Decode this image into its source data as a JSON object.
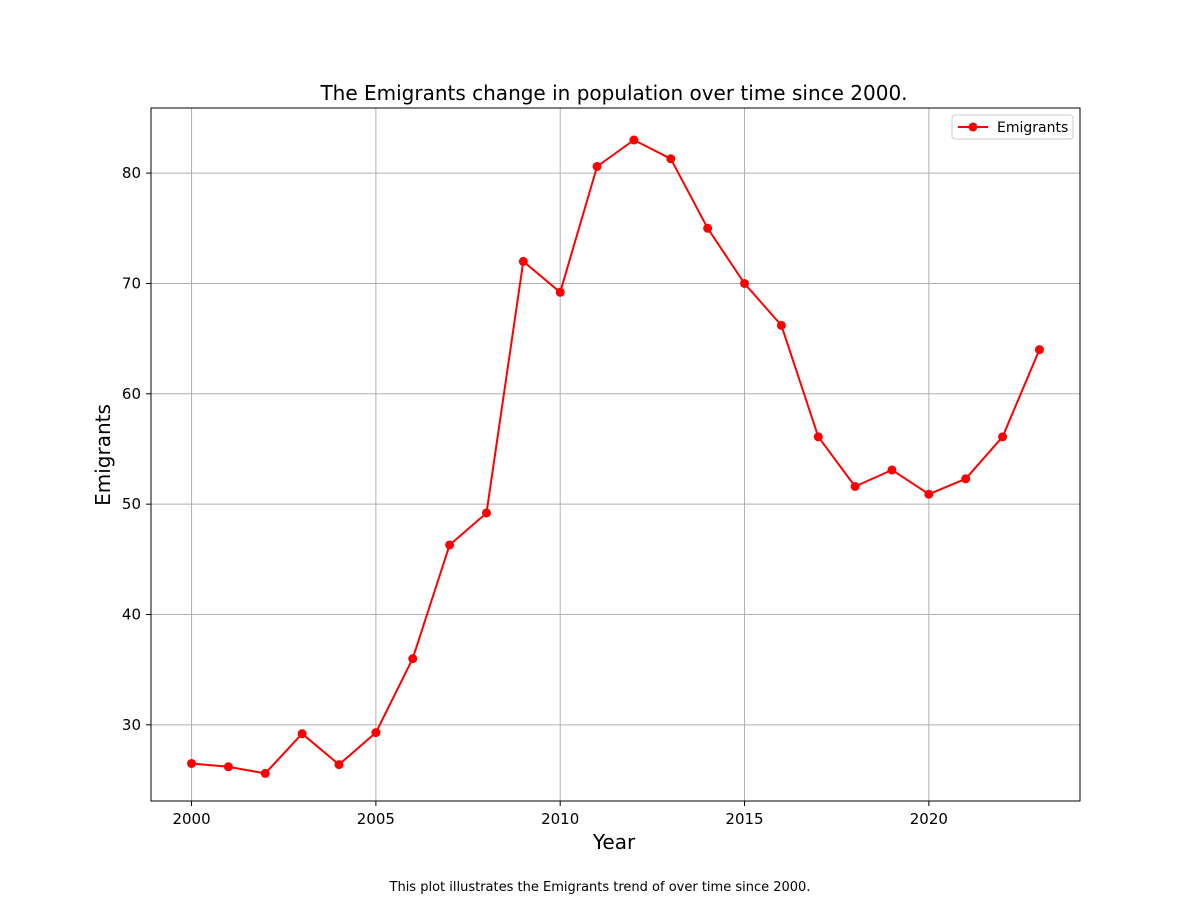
{
  "chart_data": {
    "type": "line",
    "title": "The  Emigrants change in population  over time since 2000.",
    "xlabel": "Year",
    "ylabel": "Emigrants",
    "caption": "This plot illustrates the  Emigrants trend of  over time since 2000.",
    "xlim": [
      1998.9,
      2024.1
    ],
    "ylim": [
      23.1,
      85.9
    ],
    "xticks": [
      2000,
      2005,
      2010,
      2015,
      2020
    ],
    "yticks": [
      30,
      40,
      50,
      60,
      70,
      80
    ],
    "grid": true,
    "legend_position": "top-right",
    "series": [
      {
        "name": "Emigrants",
        "color": "#ff0000",
        "marker": "circle",
        "x": [
          2000,
          2001,
          2002,
          2003,
          2004,
          2005,
          2006,
          2007,
          2008,
          2009,
          2010,
          2011,
          2012,
          2013,
          2014,
          2015,
          2016,
          2017,
          2018,
          2019,
          2020,
          2021,
          2022,
          2023
        ],
        "y": [
          26.5,
          26.2,
          25.6,
          29.2,
          26.4,
          29.3,
          36.0,
          46.3,
          49.2,
          72.0,
          69.2,
          80.6,
          83.0,
          81.3,
          75.0,
          70.0,
          66.2,
          56.1,
          51.6,
          53.1,
          50.9,
          52.3,
          56.1,
          64.0
        ]
      }
    ]
  }
}
